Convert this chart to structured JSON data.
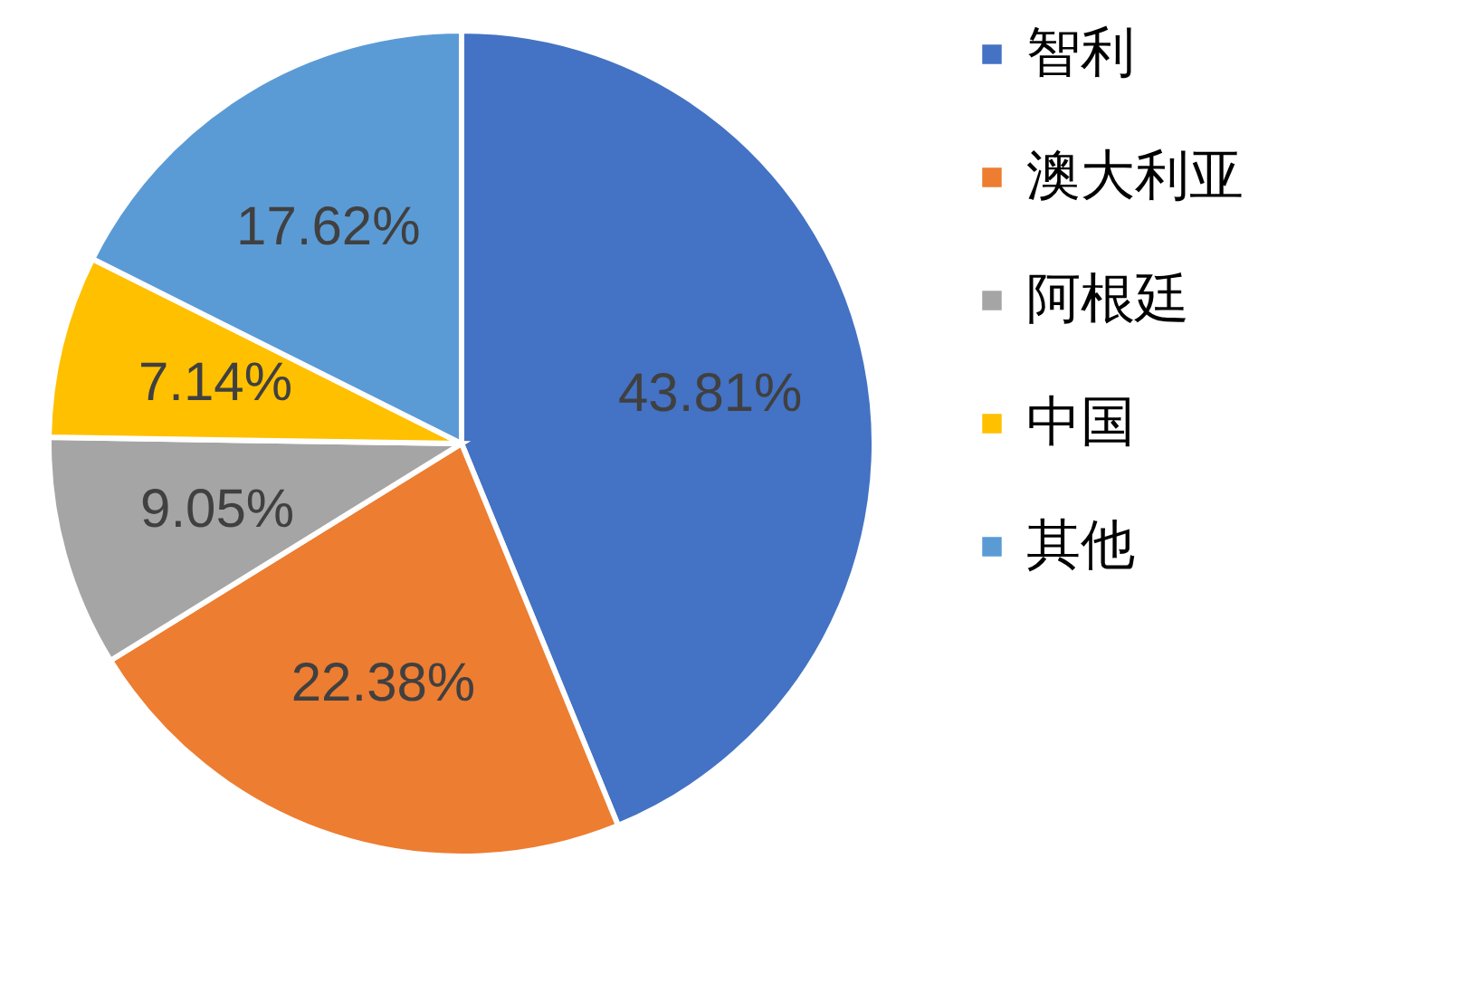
{
  "chart_data": {
    "type": "pie",
    "categories": [
      "智利",
      "澳大利亚",
      "阿根廷",
      "中国",
      "其他"
    ],
    "values": [
      43.81,
      22.38,
      9.05,
      7.14,
      17.62
    ],
    "colors": [
      "#4472c4",
      "#ed7d31",
      "#a5a5a5",
      "#ffc000",
      "#5b9bd5"
    ],
    "value_labels": [
      "43.81%",
      "22.38%",
      "9.05%",
      "7.14%",
      "17.62%"
    ],
    "legend": "right"
  }
}
